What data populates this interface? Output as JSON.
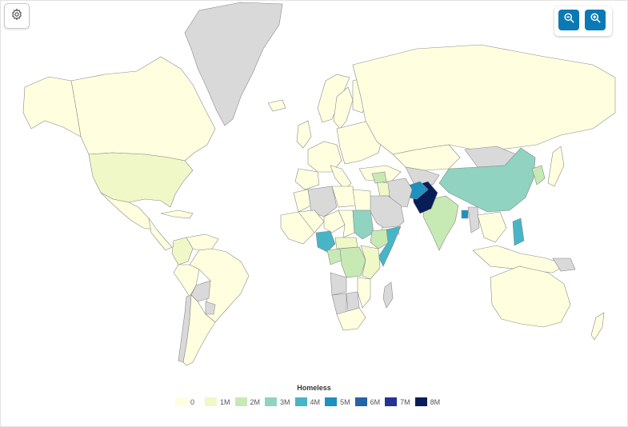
{
  "toolbar": {
    "settings_icon": "gear-icon",
    "zoom_out_icon": "zoom-out-icon",
    "zoom_in_icon": "zoom-in-icon"
  },
  "colors": {
    "no_data": "#d9d9d9",
    "border": "#8a8a8a",
    "ocean": "#ffffff",
    "accent": "#0b79b3"
  },
  "legend": {
    "title": "Homeless",
    "items": [
      {
        "label": "0",
        "color": "#ffffe0"
      },
      {
        "label": "1M",
        "color": "#f0f8c8"
      },
      {
        "label": "2M",
        "color": "#c7e9b4"
      },
      {
        "label": "3M",
        "color": "#8fd3c0"
      },
      {
        "label": "4M",
        "color": "#47b5c6"
      },
      {
        "label": "5M",
        "color": "#1d91c0"
      },
      {
        "label": "6M",
        "color": "#2563a8"
      },
      {
        "label": "7M",
        "color": "#253494"
      },
      {
        "label": "8M",
        "color": "#081d58"
      }
    ]
  },
  "map": {
    "regions": [
      {
        "name": "Greenland",
        "bucket": -1
      },
      {
        "name": "Canada",
        "bucket": 0
      },
      {
        "name": "Alaska",
        "bucket": 0
      },
      {
        "name": "United States",
        "bucket": 1
      },
      {
        "name": "Mexico",
        "bucket": 0
      },
      {
        "name": "Central America",
        "bucket": 0
      },
      {
        "name": "Caribbean",
        "bucket": 0
      },
      {
        "name": "Colombia",
        "bucket": 1
      },
      {
        "name": "Venezuela",
        "bucket": 0
      },
      {
        "name": "Brazil",
        "bucket": 0
      },
      {
        "name": "Peru",
        "bucket": 0
      },
      {
        "name": "Bolivia",
        "bucket": -1
      },
      {
        "name": "Paraguay",
        "bucket": -1
      },
      {
        "name": "Chile",
        "bucket": -1
      },
      {
        "name": "Argentina",
        "bucket": 0
      },
      {
        "name": "Iceland",
        "bucket": 0
      },
      {
        "name": "Norway",
        "bucket": 0
      },
      {
        "name": "Sweden",
        "bucket": 0
      },
      {
        "name": "Finland",
        "bucket": 0
      },
      {
        "name": "United Kingdom",
        "bucket": 0
      },
      {
        "name": "Western Europe",
        "bucket": 0
      },
      {
        "name": "Iberia",
        "bucket": 0
      },
      {
        "name": "Italy",
        "bucket": 0
      },
      {
        "name": "Eastern Europe",
        "bucket": 0
      },
      {
        "name": "Turkey",
        "bucket": 0
      },
      {
        "name": "Russia",
        "bucket": 0
      },
      {
        "name": "Kazakhstan",
        "bucket": 0
      },
      {
        "name": "Central Asia",
        "bucket": -1
      },
      {
        "name": "Mongolia",
        "bucket": -1
      },
      {
        "name": "China",
        "bucket": 3
      },
      {
        "name": "Korea",
        "bucket": 2
      },
      {
        "name": "Japan",
        "bucket": 0
      },
      {
        "name": "India",
        "bucket": 2
      },
      {
        "name": "Pakistan",
        "bucket": 8
      },
      {
        "name": "Afghanistan",
        "bucket": 5
      },
      {
        "name": "Iran",
        "bucket": -1
      },
      {
        "name": "Iraq",
        "bucket": 1
      },
      {
        "name": "Syria",
        "bucket": 2
      },
      {
        "name": "Arabian Peninsula",
        "bucket": -1
      },
      {
        "name": "Yemen",
        "bucket": 0
      },
      {
        "name": "Bangladesh",
        "bucket": 5
      },
      {
        "name": "Myanmar",
        "bucket": -1
      },
      {
        "name": "Southeast Asia",
        "bucket": 0
      },
      {
        "name": "Philippines",
        "bucket": 4
      },
      {
        "name": "Indonesia",
        "bucket": 0
      },
      {
        "name": "Papua New Guinea",
        "bucket": -1
      },
      {
        "name": "Australia",
        "bucket": 0
      },
      {
        "name": "New Zealand",
        "bucket": 0
      },
      {
        "name": "Morocco",
        "bucket": 0
      },
      {
        "name": "Algeria",
        "bucket": -1
      },
      {
        "name": "Libya",
        "bucket": 0
      },
      {
        "name": "Egypt",
        "bucket": 0
      },
      {
        "name": "West Africa",
        "bucket": 0
      },
      {
        "name": "Mali",
        "bucket": 0
      },
      {
        "name": "Niger",
        "bucket": 0
      },
      {
        "name": "Chad",
        "bucket": 0
      },
      {
        "name": "Sudan",
        "bucket": 3
      },
      {
        "name": "Nigeria",
        "bucket": 4
      },
      {
        "name": "Ethiopia",
        "bucket": 2
      },
      {
        "name": "Somalia",
        "bucket": 4
      },
      {
        "name": "Central African Rep.",
        "bucket": 1
      },
      {
        "name": "Central Africa",
        "bucket": 2
      },
      {
        "name": "Congo",
        "bucket": 2
      },
      {
        "name": "East Africa",
        "bucket": 1
      },
      {
        "name": "Angola",
        "bucket": -1
      },
      {
        "name": "Namibia",
        "bucket": -1
      },
      {
        "name": "Botswana",
        "bucket": -1
      },
      {
        "name": "Southern Africa",
        "bucket": 0
      },
      {
        "name": "Mozambique",
        "bucket": 0
      },
      {
        "name": "Madagascar",
        "bucket": -1
      }
    ]
  }
}
